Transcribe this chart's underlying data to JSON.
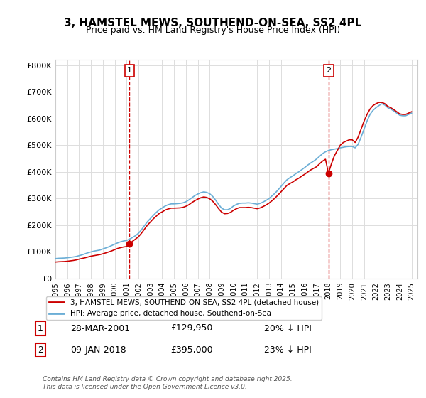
{
  "title": "3, HAMSTEL MEWS, SOUTHEND-ON-SEA, SS2 4PL",
  "subtitle": "Price paid vs. HM Land Registry's House Price Index (HPI)",
  "ylabel_ticks": [
    "£0",
    "£100K",
    "£200K",
    "£300K",
    "£400K",
    "£500K",
    "£600K",
    "£700K",
    "£800K"
  ],
  "ytick_values": [
    0,
    100000,
    200000,
    300000,
    400000,
    500000,
    600000,
    700000,
    800000
  ],
  "ylim": [
    0,
    820000
  ],
  "xlim_start": 1995.0,
  "xlim_end": 2025.5,
  "sale1_x": 2001.24,
  "sale1_y": 129950,
  "sale1_label": "1",
  "sale2_x": 2018.03,
  "sale2_y": 395000,
  "sale2_label": "2",
  "vline1_x": 2001.24,
  "vline2_x": 2018.03,
  "legend_line1": "3, HAMSTEL MEWS, SOUTHEND-ON-SEA, SS2 4PL (detached house)",
  "legend_line2": "HPI: Average price, detached house, Southend-on-Sea",
  "annotation1_box": "1",
  "annotation1_date": "28-MAR-2001",
  "annotation1_price": "£129,950",
  "annotation1_pct": "20% ↓ HPI",
  "annotation2_box": "2",
  "annotation2_date": "09-JAN-2018",
  "annotation2_price": "£395,000",
  "annotation2_pct": "23% ↓ HPI",
  "footer": "Contains HM Land Registry data © Crown copyright and database right 2025.\nThis data is licensed under the Open Government Licence v3.0.",
  "red_color": "#cc0000",
  "blue_color": "#6baed6",
  "vline_color": "#cc0000",
  "grid_color": "#dddddd",
  "bg_color": "#ffffff",
  "title_fontsize": 11,
  "subtitle_fontsize": 9,
  "hpi_data": {
    "years": [
      1995.0,
      1995.25,
      1995.5,
      1995.75,
      1996.0,
      1996.25,
      1996.5,
      1996.75,
      1997.0,
      1997.25,
      1997.5,
      1997.75,
      1998.0,
      1998.25,
      1998.5,
      1998.75,
      1999.0,
      1999.25,
      1999.5,
      1999.75,
      2000.0,
      2000.25,
      2000.5,
      2000.75,
      2001.0,
      2001.25,
      2001.5,
      2001.75,
      2002.0,
      2002.25,
      2002.5,
      2002.75,
      2003.0,
      2003.25,
      2003.5,
      2003.75,
      2004.0,
      2004.25,
      2004.5,
      2004.75,
      2005.0,
      2005.25,
      2005.5,
      2005.75,
      2006.0,
      2006.25,
      2006.5,
      2006.75,
      2007.0,
      2007.25,
      2007.5,
      2007.75,
      2008.0,
      2008.25,
      2008.5,
      2008.75,
      2009.0,
      2009.25,
      2009.5,
      2009.75,
      2010.0,
      2010.25,
      2010.5,
      2010.75,
      2011.0,
      2011.25,
      2011.5,
      2011.75,
      2012.0,
      2012.25,
      2012.5,
      2012.75,
      2013.0,
      2013.25,
      2013.5,
      2013.75,
      2014.0,
      2014.25,
      2014.5,
      2014.75,
      2015.0,
      2015.25,
      2015.5,
      2015.75,
      2016.0,
      2016.25,
      2016.5,
      2016.75,
      2017.0,
      2017.25,
      2017.5,
      2017.75,
      2018.0,
      2018.25,
      2018.5,
      2018.75,
      2019.0,
      2019.25,
      2019.5,
      2019.75,
      2020.0,
      2020.25,
      2020.5,
      2020.75,
      2021.0,
      2021.25,
      2021.5,
      2021.75,
      2022.0,
      2022.25,
      2022.5,
      2022.75,
      2023.0,
      2023.25,
      2023.5,
      2023.75,
      2024.0,
      2024.25,
      2024.5,
      2024.75,
      2025.0
    ],
    "values": [
      75000,
      76000,
      76500,
      77000,
      78000,
      79500,
      81000,
      83000,
      86000,
      89000,
      93000,
      97000,
      100000,
      103000,
      105000,
      107000,
      111000,
      115000,
      119000,
      124000,
      129000,
      134000,
      138000,
      141000,
      143000,
      148000,
      154000,
      161000,
      170000,
      183000,
      198000,
      213000,
      225000,
      237000,
      248000,
      258000,
      265000,
      272000,
      277000,
      280000,
      280000,
      281000,
      282000,
      284000,
      288000,
      295000,
      303000,
      311000,
      317000,
      322000,
      325000,
      323000,
      318000,
      308000,
      294000,
      278000,
      264000,
      258000,
      258000,
      263000,
      272000,
      278000,
      282000,
      283000,
      283000,
      284000,
      283000,
      281000,
      279000,
      282000,
      287000,
      293000,
      300000,
      310000,
      320000,
      332000,
      345000,
      358000,
      370000,
      378000,
      385000,
      393000,
      400000,
      408000,
      416000,
      425000,
      433000,
      440000,
      448000,
      458000,
      468000,
      475000,
      480000,
      483000,
      485000,
      487000,
      490000,
      492000,
      494000,
      495000,
      495000,
      490000,
      503000,
      530000,
      560000,
      590000,
      615000,
      630000,
      640000,
      648000,
      655000,
      650000,
      640000,
      635000,
      628000,
      620000,
      612000,
      610000,
      610000,
      615000,
      620000
    ]
  },
  "price_paid_data": {
    "years": [
      1995.0,
      1995.25,
      1995.5,
      1995.75,
      1996.0,
      1996.25,
      1996.5,
      1996.75,
      1997.0,
      1997.25,
      1997.5,
      1997.75,
      1998.0,
      1998.25,
      1998.5,
      1998.75,
      1999.0,
      1999.25,
      1999.5,
      1999.75,
      2000.0,
      2000.25,
      2000.5,
      2000.75,
      2001.0,
      2001.25,
      2001.5,
      2001.75,
      2002.0,
      2002.25,
      2002.5,
      2002.75,
      2003.0,
      2003.25,
      2003.5,
      2003.75,
      2004.0,
      2004.25,
      2004.5,
      2004.75,
      2005.0,
      2005.25,
      2005.5,
      2005.75,
      2006.0,
      2006.25,
      2006.5,
      2006.75,
      2007.0,
      2007.25,
      2007.5,
      2007.75,
      2008.0,
      2008.25,
      2008.5,
      2008.75,
      2009.0,
      2009.25,
      2009.5,
      2009.75,
      2010.0,
      2010.25,
      2010.5,
      2010.75,
      2011.0,
      2011.25,
      2011.5,
      2011.75,
      2012.0,
      2012.25,
      2012.5,
      2012.75,
      2013.0,
      2013.25,
      2013.5,
      2013.75,
      2014.0,
      2014.25,
      2014.5,
      2014.75,
      2015.0,
      2015.25,
      2015.5,
      2015.75,
      2016.0,
      2016.25,
      2016.5,
      2016.75,
      2017.0,
      2017.25,
      2017.5,
      2017.75,
      2018.0,
      2018.25,
      2018.5,
      2018.75,
      2019.0,
      2019.25,
      2019.5,
      2019.75,
      2020.0,
      2020.25,
      2020.5,
      2020.75,
      2021.0,
      2021.25,
      2021.5,
      2021.75,
      2022.0,
      2022.25,
      2022.5,
      2022.75,
      2023.0,
      2023.25,
      2023.5,
      2023.75,
      2024.0,
      2024.25,
      2024.5,
      2024.75,
      2025.0
    ],
    "values": [
      62000,
      63000,
      63500,
      64000,
      65000,
      66500,
      68000,
      70000,
      73000,
      75500,
      78000,
      81000,
      84000,
      86000,
      88000,
      90000,
      93000,
      96500,
      100000,
      104000,
      108500,
      113000,
      116000,
      118500,
      120000,
      129950,
      140000,
      148000,
      157000,
      170000,
      185000,
      200000,
      212000,
      224000,
      234000,
      244000,
      250000,
      257000,
      261000,
      264000,
      264000,
      264500,
      265000,
      267000,
      271000,
      277000,
      285000,
      292000,
      298000,
      303000,
      306000,
      304000,
      299000,
      290000,
      277000,
      262000,
      249000,
      243000,
      244000,
      248000,
      256000,
      262000,
      266000,
      266000,
      266000,
      267000,
      266000,
      264000,
      262000,
      265000,
      270000,
      276000,
      283000,
      292000,
      302000,
      313000,
      325000,
      337000,
      349000,
      356000,
      362000,
      370000,
      376000,
      384000,
      391000,
      399000,
      407000,
      413000,
      419000,
      430000,
      440000,
      447000,
      395000,
      430000,
      460000,
      480000,
      500000,
      510000,
      515000,
      520000,
      520000,
      510000,
      530000,
      560000,
      590000,
      615000,
      635000,
      648000,
      655000,
      660000,
      660000,
      655000,
      645000,
      640000,
      633000,
      625000,
      617000,
      615000,
      615000,
      620000,
      625000
    ]
  }
}
